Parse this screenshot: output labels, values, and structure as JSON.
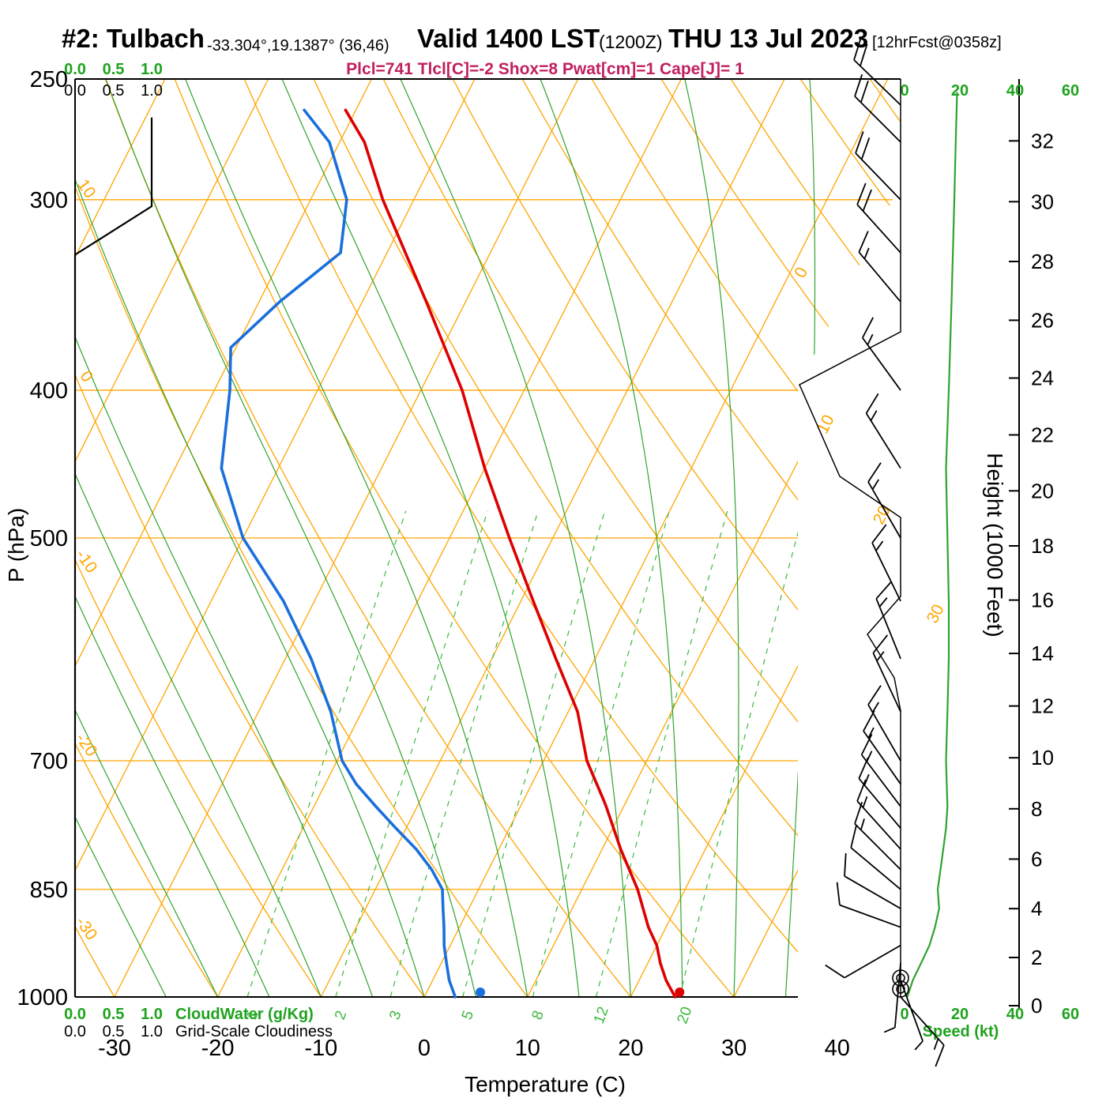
{
  "header": {
    "station_id": "#2: Tulbach",
    "coords": "-33.304°,19.1387° (36,46)",
    "valid_main": "Valid 1400 LST",
    "valid_z": "(1200Z)",
    "valid_date": "THU 13 Jul 2023",
    "forecast_tag": "[12hrFcst@0358z]",
    "params_line": "Plcl=741 Tlcl[C]=-2 Shox=8 Pwat[cm]=1 Cape[J]= 1"
  },
  "axis_labels": {
    "pressure": "P (hPa)",
    "temperature": "Temperature (C)",
    "height": "Height (1000 Feet)",
    "cloudwater": "CloudWater (g/Kg)",
    "cloudiness": "Grid-Scale Cloudiness",
    "speed": "Speed (kt)"
  },
  "colors": {
    "dry_lines": "#ffa500",
    "moist_lines": "#2fa32f",
    "mixing_lines": "#3db83d",
    "green_text": "#1fa31f",
    "temperature_line": "#dd0000",
    "dewpoint_line": "#1a6fdb",
    "parameters_text": "#c02060",
    "axis_black": "#000000"
  },
  "chart_data": {
    "type": "skewt_log_p_sounding",
    "pressure_axis_hpa": [
      250,
      300,
      400,
      500,
      700,
      850,
      1000
    ],
    "temperature_axis_c": [
      -30,
      -20,
      -10,
      0,
      10,
      20,
      30,
      40
    ],
    "height_axis_kft": [
      0,
      2,
      4,
      6,
      8,
      10,
      12,
      14,
      16,
      18,
      20,
      22,
      24,
      26,
      28,
      30,
      32
    ],
    "speed_axis_kt": [
      0,
      20,
      40,
      60
    ],
    "cloud_axis": [
      "0.0",
      "0.5",
      "1.0"
    ],
    "dry_adiabat_labels_c": [
      10,
      0,
      -10,
      -20,
      -30
    ],
    "isotherm_labels_right_c": [
      0,
      10,
      20,
      30
    ],
    "mixing_ratio_g_per_kg": [
      1,
      2,
      3,
      5,
      8,
      12,
      20
    ],
    "temperature_profile": {
      "pressure_hpa": [
        1000,
        975,
        950,
        925,
        900,
        850,
        800,
        750,
        741,
        700,
        650,
        600,
        550,
        500,
        450,
        400,
        350,
        300,
        275,
        262
      ],
      "temp_c": [
        24.3,
        22.6,
        21.2,
        20.0,
        18.3,
        15.4,
        11.8,
        8.3,
        7.6,
        4.2,
        0.9,
        -3.8,
        -8.8,
        -14.2,
        -20.0,
        -26.0,
        -33.8,
        -43.0,
        -47.6,
        -51.0
      ]
    },
    "dewpoint_profile": {
      "pressure_hpa": [
        1000,
        975,
        950,
        925,
        900,
        875,
        850,
        825,
        800,
        775,
        750,
        725,
        700,
        650,
        600,
        550,
        500,
        450,
        400,
        375,
        350,
        325,
        300,
        275,
        262
      ],
      "dewpoint_c": [
        3.0,
        1.6,
        0.5,
        -0.6,
        -1.5,
        -2.5,
        -3.5,
        -5.5,
        -8.0,
        -11.0,
        -14.0,
        -17.0,
        -19.5,
        -23.0,
        -27.5,
        -33.0,
        -40.0,
        -45.5,
        -48.5,
        -50.5,
        -48.0,
        -44.5,
        -46.5,
        -51.0,
        -55.0
      ]
    },
    "surface_dots": {
      "pressure_hpa": 1000,
      "temp_c": 24.5,
      "dewpoint_c": 5.2
    },
    "cloudiness_profile": [
      {
        "p": 1000,
        "v": 0
      },
      {
        "p": 326,
        "v": 0
      },
      {
        "p": 303,
        "v": 1
      },
      {
        "p": 265,
        "v": 1
      }
    ],
    "wind_speed_profile": {
      "pressure_hpa": [
        1000,
        975,
        950,
        925,
        900,
        875,
        850,
        825,
        800,
        775,
        750,
        700,
        650,
        600,
        550,
        500,
        450,
        400,
        350,
        300,
        275,
        255
      ],
      "speed_kt": [
        1,
        3,
        6,
        9,
        11,
        12.5,
        12,
        13,
        14,
        15,
        15.5,
        15,
        15.5,
        16,
        16,
        15.5,
        15,
        16,
        17,
        18,
        18.5,
        19
      ]
    },
    "wind_barbs": [
      {
        "p": 1000,
        "kt": 0,
        "dir": 0
      },
      {
        "p": 994,
        "kt": 0,
        "dir": 0
      },
      {
        "p": 1000,
        "kt": 15,
        "dir": 138
      },
      {
        "p": 975,
        "kt": 5,
        "dir": 160
      },
      {
        "p": 950,
        "kt": 7,
        "dir": 185
      },
      {
        "p": 925,
        "kt": 10,
        "dir": 240
      },
      {
        "p": 900,
        "kt": 10,
        "dir": 290
      },
      {
        "p": 875,
        "kt": 12,
        "dir": 300
      },
      {
        "p": 850,
        "kt": 12,
        "dir": 310
      },
      {
        "p": 825,
        "kt": 13,
        "dir": 315
      },
      {
        "p": 800,
        "kt": 14,
        "dir": 318
      },
      {
        "p": 775,
        "kt": 16,
        "dir": 320
      },
      {
        "p": 750,
        "kt": 17,
        "dir": 323
      },
      {
        "p": 725,
        "kt": 16,
        "dir": 325
      },
      {
        "p": 700,
        "kt": 15,
        "dir": 330
      },
      {
        "p": 650,
        "kt": 15,
        "dir": 335
      },
      {
        "p": 600,
        "kt": 16,
        "dir": 338
      },
      {
        "p": 550,
        "kt": 16,
        "dir": 334
      },
      {
        "p": 500,
        "kt": 15,
        "dir": 330
      },
      {
        "p": 450,
        "kt": 15,
        "dir": 328
      },
      {
        "p": 400,
        "kt": 16,
        "dir": 324
      },
      {
        "p": 350,
        "kt": 17,
        "dir": 320
      },
      {
        "p": 325,
        "kt": 18,
        "dir": 318
      },
      {
        "p": 300,
        "kt": 18,
        "dir": 316
      },
      {
        "p": 275,
        "kt": 19,
        "dir": 315
      },
      {
        "p": 260,
        "kt": 20,
        "dir": 314
      }
    ]
  }
}
